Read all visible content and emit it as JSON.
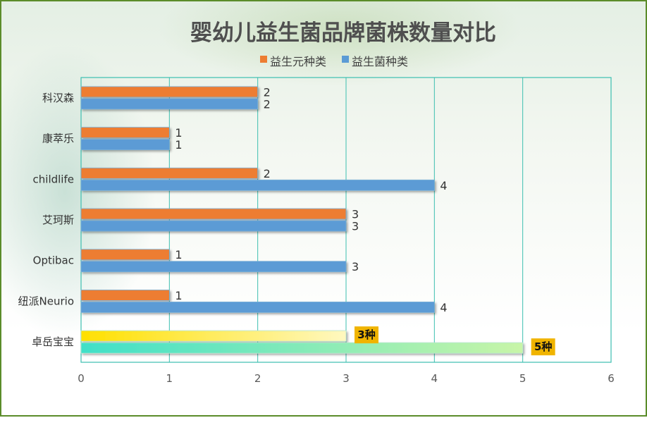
{
  "chart_data": {
    "type": "bar",
    "orientation": "horizontal",
    "title": "婴幼儿益生菌品牌菌株数量对比",
    "categories": [
      "科汉森",
      "康萃乐",
      "childlife",
      "艾珂斯",
      "Optibac",
      "纽派Neurio",
      "卓岳宝宝"
    ],
    "series": [
      {
        "name": "益生元种类",
        "values": [
          2,
          1,
          2,
          3,
          1,
          1,
          3
        ],
        "color": "#ed7d31"
      },
      {
        "name": "益生菌种类",
        "values": [
          2,
          1,
          4,
          3,
          3,
          4,
          5
        ],
        "color": "#5b9bd5"
      }
    ],
    "xlim": [
      0,
      6
    ],
    "x_ticks": [
      0,
      1,
      2,
      3,
      4,
      5,
      6
    ],
    "data_labels": [
      [
        "2",
        "1",
        "2",
        "3",
        "1",
        "1",
        "3种"
      ],
      [
        "2",
        "1",
        "4",
        "3",
        "3",
        "4",
        "5种"
      ]
    ],
    "highlight": {
      "category": "卓岳宝宝",
      "series1_gradient": [
        "#ffe000",
        "#fff8c0"
      ],
      "series2_gradient": [
        "#40e0c8",
        "#c8f5a8"
      ],
      "label_bg": "#f0b400"
    },
    "grid": "vertical",
    "grid_color": "#3cbfb0",
    "legend_position": "top",
    "xlabel": "",
    "ylabel": ""
  }
}
